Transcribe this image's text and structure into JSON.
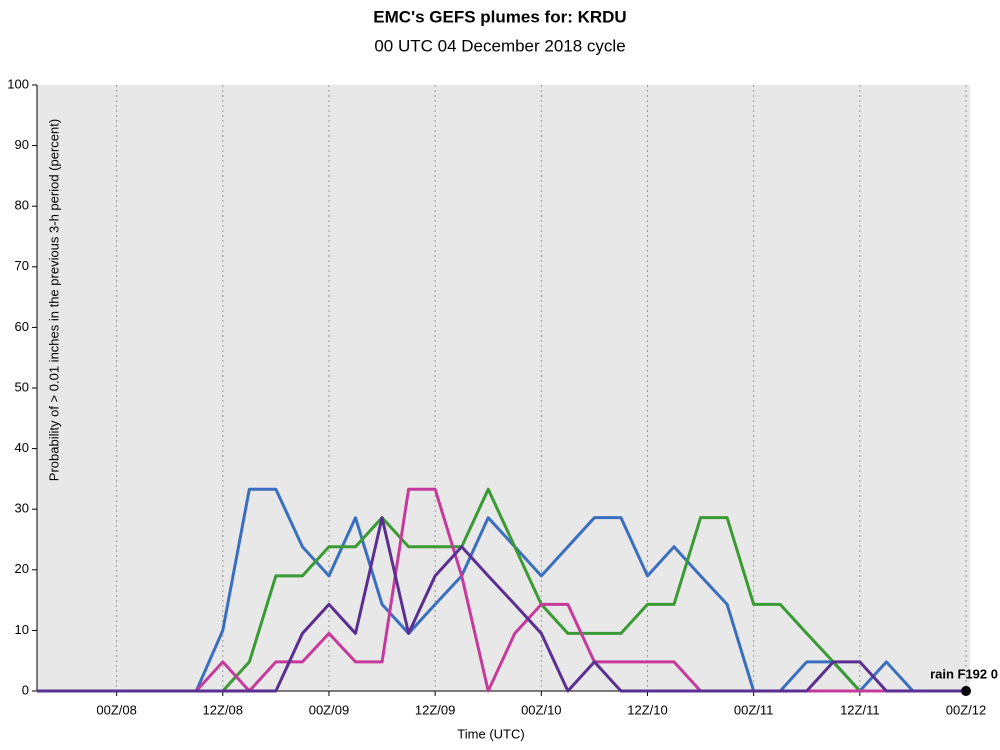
{
  "chart_data": {
    "type": "line",
    "title": "EMC's GEFS plumes for: KRDU",
    "subtitle": "00 UTC 04 December 2018 cycle",
    "x_label": "Time (UTC)",
    "y_label": "Probability of > 0.01 inches in the previous 3-h period (percent)",
    "annotation": "rain F192 0",
    "x": [
      87,
      90,
      93,
      96,
      99,
      102,
      105,
      108,
      111,
      114,
      117,
      120,
      123,
      126,
      129,
      132,
      135,
      138,
      141,
      144,
      147,
      150,
      153,
      156,
      159,
      162,
      165,
      168,
      171,
      174,
      177,
      180,
      183,
      186,
      189,
      192
    ],
    "xlim": [
      87,
      192
    ],
    "xticks": [
      {
        "value": 96,
        "label": "00Z/08"
      },
      {
        "value": 108,
        "label": "12Z/08"
      },
      {
        "value": 120,
        "label": "00Z/09"
      },
      {
        "value": 132,
        "label": "12Z/09"
      },
      {
        "value": 144,
        "label": "00Z/10"
      },
      {
        "value": 156,
        "label": "12Z/10"
      },
      {
        "value": 168,
        "label": "00Z/11"
      },
      {
        "value": 180,
        "label": "12Z/11"
      },
      {
        "value": 192,
        "label": "00Z/12"
      }
    ],
    "ylim": [
      0,
      100
    ],
    "yticks": [
      0,
      10,
      20,
      30,
      40,
      50,
      60,
      70,
      80,
      90,
      100
    ],
    "grid": true,
    "series": [
      {
        "color": "#3a6fc0",
        "values": [
          0,
          0,
          0,
          0,
          0,
          0,
          0,
          10,
          33.3,
          33.3,
          23.8,
          19,
          28.6,
          14.3,
          9.5,
          14.3,
          19,
          28.6,
          23.8,
          19,
          23.8,
          28.6,
          28.6,
          19,
          23.8,
          19,
          14.3,
          0,
          0,
          4.8,
          4.8,
          0,
          4.8,
          0,
          0,
          0
        ]
      },
      {
        "color": "#3a9a33",
        "values": [
          0,
          0,
          0,
          0,
          0,
          0,
          0,
          0,
          4.8,
          19,
          19,
          23.8,
          23.8,
          28.6,
          23.8,
          23.8,
          23.8,
          33.3,
          23.8,
          14.3,
          9.5,
          9.5,
          9.5,
          14.3,
          14.3,
          28.6,
          28.6,
          14.3,
          14.3,
          9.5,
          4.8,
          0,
          0,
          0,
          0,
          0
        ]
      },
      {
        "color": "#c63a9c",
        "values": [
          0,
          0,
          0,
          0,
          0,
          0,
          0,
          4.8,
          0,
          4.8,
          4.8,
          9.5,
          4.8,
          4.8,
          33.3,
          33.3,
          19,
          0,
          9.5,
          14.3,
          14.3,
          4.8,
          4.8,
          4.8,
          4.8,
          0,
          0,
          0,
          0,
          0,
          0,
          0,
          0,
          0,
          0,
          0
        ]
      },
      {
        "color": "#5b2f91",
        "values": [
          0,
          0,
          0,
          0,
          0,
          0,
          0,
          0,
          0,
          0,
          9.5,
          14.3,
          9.5,
          28.6,
          9.5,
          19,
          23.8,
          19,
          14.3,
          9.5,
          0,
          4.8,
          0,
          0,
          0,
          0,
          0,
          0,
          0,
          0,
          4.8,
          4.8,
          0,
          0,
          0,
          0
        ]
      }
    ]
  }
}
